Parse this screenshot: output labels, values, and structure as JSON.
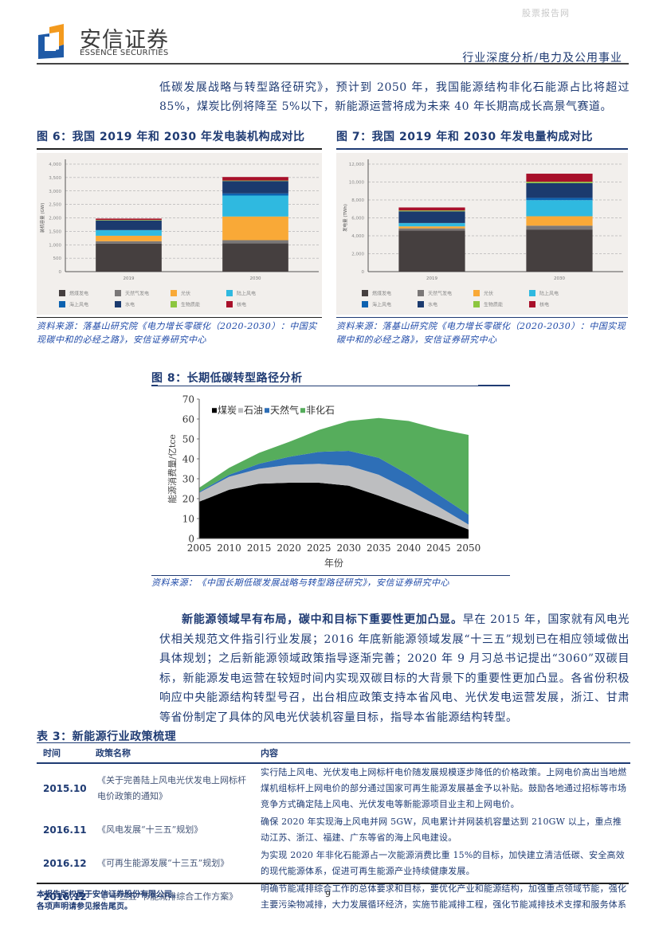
{
  "watermark": "股票报告网",
  "logo": {
    "cn": "安信证券",
    "en": "ESSENCE SECURITIES",
    "colors": {
      "blue": "#1f5aa6",
      "orange": "#f39a1e"
    }
  },
  "header": {
    "category": "行业深度分析/电力及公用事业"
  },
  "intro": {
    "text": "低碳发展战略与转型路径研究》，预计到 2050 年，我国能源结构非化石能源占比将超过 85%，煤炭比例将降至 5%以下，新能源运营将成为未来 40 年长期高成长高景气赛道。"
  },
  "fig6": {
    "title": "图 6：我国 2019 年和 2030 年发电装机构成对比",
    "source": "资料来源：落基山研究院《电力增长零碳化（2020-2030）：中国实现碳中和的必经之路》，安信证券研究中心"
  },
  "fig7": {
    "title": "图 7：我国 2019 年和 2030 年发电量构成对比",
    "source": "资料来源：落基山研究院《电力增长零碳化（2020-2030）：中国实现碳中和的必经之路》，安信证券研究中心"
  },
  "fig8": {
    "title": "图 8：长期低碳转型路径分析",
    "source": "资料来源：《中国长期低碳发展战略与转型路径研究》，安信证券研究中心"
  },
  "chart_data": [
    {
      "id": "fig6",
      "type": "bar",
      "stacked": true,
      "title": "我国 2019 年和 2030 年发电装机构成对比",
      "xlabel": "",
      "ylabel": "装机容量 (GW)",
      "ylim": [
        0,
        4000
      ],
      "yticks": [
        0,
        500,
        1000,
        1500,
        2000,
        2500,
        3000,
        3500,
        4000
      ],
      "grid": true,
      "legend_position": "bottom",
      "categories": [
        "2019",
        "2030"
      ],
      "series": [
        {
          "name": "燃煤发电",
          "color": "#453f3f",
          "values": [
            1040,
            1050
          ]
        },
        {
          "name": "天然气发电",
          "color": "#7a7777",
          "values": [
            90,
            120
          ]
        },
        {
          "name": "光伏",
          "color": "#f9a937",
          "values": [
            205,
            880
          ]
        },
        {
          "name": "陆上风电",
          "color": "#2fb9e0",
          "values": [
            205,
            780
          ]
        },
        {
          "name": "海上风电",
          "color": "#0d62b0",
          "values": [
            7,
            80
          ]
        },
        {
          "name": "水电",
          "color": "#1b3a6e",
          "values": [
            356,
            460
          ]
        },
        {
          "name": "生物质能",
          "color": "#8cc63f",
          "values": [
            20,
            20
          ]
        },
        {
          "name": "核电",
          "color": "#a8102a",
          "values": [
            50,
            130
          ]
        }
      ]
    },
    {
      "id": "fig7",
      "type": "bar",
      "stacked": true,
      "title": "我国 2019 年和 2030 年发电量构成对比",
      "xlabel": "",
      "ylabel": "发电量 (TWh)",
      "ylim": [
        0,
        12000
      ],
      "yticks": [
        0,
        2000,
        4000,
        6000,
        8000,
        10000,
        12000
      ],
      "grid": true,
      "legend_position": "bottom",
      "categories": [
        "2019",
        "2030"
      ],
      "series": [
        {
          "name": "燃煤发电",
          "color": "#453f3f",
          "values": [
            4600,
            4700
          ]
        },
        {
          "name": "天然气发电",
          "color": "#7a7777",
          "values": [
            230,
            430
          ]
        },
        {
          "name": "光伏",
          "color": "#f9a937",
          "values": [
            220,
            1050
          ]
        },
        {
          "name": "陆上风电",
          "color": "#2fb9e0",
          "values": [
            360,
            1800
          ]
        },
        {
          "name": "海上风电",
          "color": "#0d62b0",
          "values": [
            20,
            250
          ]
        },
        {
          "name": "水电",
          "color": "#1b3a6e",
          "values": [
            1300,
            1650
          ]
        },
        {
          "name": "生物质能",
          "color": "#8cc63f",
          "values": [
            100,
            150
          ]
        },
        {
          "name": "核电",
          "color": "#a8102a",
          "values": [
            330,
            900
          ]
        }
      ]
    },
    {
      "id": "fig8",
      "type": "area",
      "stacked": true,
      "title": "长期低碳转型路径分析",
      "xlabel": "年份",
      "ylabel": "能源消费量/亿tce",
      "ylim": [
        0,
        70
      ],
      "yticks": [
        0,
        10,
        20,
        30,
        40,
        50,
        60,
        70
      ],
      "grid": false,
      "legend_position": "top-left inside",
      "x": [
        2005,
        2010,
        2015,
        2020,
        2025,
        2030,
        2035,
        2040,
        2045,
        2050
      ],
      "series": [
        {
          "name": "煤炭",
          "color": "#000000",
          "values": [
            18.5,
            24.5,
            27.5,
            28,
            28,
            26.5,
            21.5,
            16,
            10.5,
            4.5
          ]
        },
        {
          "name": "石油",
          "color": "#bdbec0",
          "values": [
            4.5,
            6.5,
            7.5,
            9,
            9.5,
            10,
            10.5,
            8.5,
            5.5,
            2.5
          ]
        },
        {
          "name": "天然气",
          "color": "#2e6fb7",
          "values": [
            0.5,
            1,
            2.5,
            4,
            6,
            7.5,
            8.5,
            7.5,
            6,
            5
          ]
        },
        {
          "name": "非化石",
          "color": "#56ad5c",
          "values": [
            2,
            3.5,
            5.5,
            7.5,
            11,
            15,
            20,
            27,
            33,
            40
          ]
        }
      ]
    }
  ],
  "body": {
    "lead": "新能源领域早有布局，碳中和目标下重要性更加凸显。",
    "text": "早在 2015 年，国家就有风电光伏相关规范文件指引行业发展；2016 年底新能源领域发展“十三五”规划已在相应领域做出具体规划；之后新能源领域政策指导逐渐完善；2020 年 9 月习总书记提出“3060”双碳目标，新能源发电运营在较短时间内实现双碳目标的大背景下的重要性更加凸显。各省份积极响应中央能源结构转型号召，出台相应政策支持本省风电、光伏发电运营发展，浙江、甘肃等省份制定了具体的风电光伏装机容量目标，指导本省能源结构转型。"
  },
  "table": {
    "title": "表 3：新能源行业政策梳理",
    "headers": [
      "时间",
      "政策名称",
      "内容"
    ],
    "rows": [
      {
        "time": "2015.10",
        "name": "《关于完善陆上风电光伏发电上网标杆电价政策的通知》",
        "content": "实行陆上风电、光伏发电上网标杆电价随发展规模逐步降低的价格政策。上网电价高出当地燃煤机组标杆上网电价的部分通过国家可再生能源发展基金予以补贴。鼓励各地通过招标等市场竞争方式确定陆上风电、光伏发电等新能源项目业主和上网电价。"
      },
      {
        "time": "2016.11",
        "name": "《风电发展“十三五”规划》",
        "content": "确保 2020 年实现海上风电并网 5GW，风电累计并网装机容量达到 210GW 以上，重点推动江苏、浙江、福建、广东等省的海上风电建设。"
      },
      {
        "time": "2016.12",
        "name": "《可再生能源发展“十三五”规划》",
        "content": "为实现 2020 年非化石能源占一次能源消费比重 15%的目标，加快建立清洁低碳、安全高效的现代能源体系，促进可再生能源产业持续健康发展。"
      },
      {
        "time": "2016.12",
        "name": "《“十三五”节能减排综合工作方案》",
        "content": "明确节能减排综合工作的总体要求和目标，要优化产业和能源结构，加强重点领域节能，强化主要污染物减排，大力发展循环经济，实施节能减排工程，强化节能减排技术支撑和服务体系"
      }
    ]
  },
  "footer": {
    "line1": "本报告版权属于安信证券股份有限公司。",
    "line2": "各项声明请参见报告尾页。",
    "page": "9"
  }
}
